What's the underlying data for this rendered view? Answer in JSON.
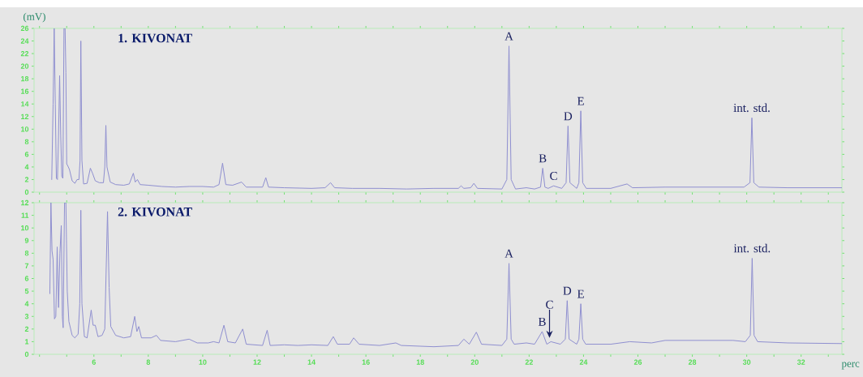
{
  "chart_data": [
    {
      "type": "line",
      "title": "1. KIVONAT",
      "ylabel": "(mV)",
      "x": [
        4.45,
        4.5,
        4.54,
        4.58,
        4.62,
        4.66,
        4.7,
        4.74,
        4.78,
        4.82,
        4.86,
        4.9,
        4.94,
        4.97,
        5.0,
        5.06,
        5.1,
        5.2,
        5.3,
        5.38,
        5.45,
        5.49,
        5.52,
        5.56,
        5.62,
        5.75,
        5.87,
        5.95,
        6.05,
        6.2,
        6.35,
        6.4,
        6.44,
        6.48,
        6.6,
        6.8,
        7.1,
        7.3,
        7.45,
        7.52,
        7.6,
        7.7,
        8.0,
        8.5,
        9.0,
        9.5,
        10.0,
        10.4,
        10.6,
        10.73,
        10.85,
        11.1,
        11.43,
        11.6,
        12.0,
        12.2,
        12.32,
        12.42,
        13.0,
        14.0,
        14.5,
        14.7,
        14.85,
        15.5,
        16.5,
        17.5,
        18.5,
        19.4,
        19.5,
        19.6,
        19.85,
        19.97,
        20.1,
        21.0,
        21.18,
        21.26,
        21.34,
        21.5,
        21.9,
        22.2,
        22.42,
        22.5,
        22.58,
        22.7,
        22.9,
        23.2,
        23.36,
        23.43,
        23.5,
        23.75,
        23.83,
        23.9,
        23.97,
        24.1,
        25.0,
        25.6,
        25.8,
        27.0,
        29.0,
        29.9,
        30.12,
        30.19,
        30.26,
        30.45,
        31.5,
        33.5
      ],
      "series": [
        {
          "color": "#8f8fd0",
          "values": [
            2.0,
            14,
            26,
            14,
            2.2,
            2.0,
            9,
            18.5,
            9,
            2.5,
            2.2,
            26,
            26,
            19,
            4.5,
            4.0,
            3.6,
            1.8,
            1.4,
            2.0,
            2.0,
            5,
            24,
            5,
            1.3,
            1.4,
            3.8,
            3.0,
            1.8,
            1.5,
            1.5,
            4,
            10.6,
            4,
            1.6,
            1.2,
            1.1,
            1.3,
            3.0,
            1.6,
            2.0,
            1.2,
            1.1,
            0.9,
            0.8,
            0.9,
            0.9,
            0.8,
            1.2,
            4.6,
            1.2,
            1.1,
            1.6,
            0.8,
            0.8,
            0.8,
            2.3,
            0.8,
            0.7,
            0.6,
            0.7,
            1.5,
            0.7,
            0.6,
            0.6,
            0.5,
            0.6,
            0.6,
            1.0,
            0.6,
            0.7,
            1.4,
            0.6,
            0.5,
            2,
            23.2,
            2,
            0.5,
            0.7,
            0.5,
            0.8,
            3.8,
            0.8,
            0.6,
            1.0,
            0.6,
            1.5,
            10.5,
            1.5,
            0.6,
            1.5,
            12.9,
            1.5,
            0.6,
            0.6,
            1.3,
            0.7,
            0.8,
            0.8,
            0.8,
            1.5,
            11.8,
            1.5,
            0.8,
            0.7,
            0.7
          ]
        }
      ],
      "xlim": [
        3.8,
        33.5
      ],
      "ylim": [
        0,
        26
      ],
      "xticks": [
        {
          "value": 4,
          "label": null
        },
        {
          "value": 5,
          "label": null
        },
        6,
        {
          "value": 7,
          "label": null
        },
        8,
        {
          "value": 9,
          "label": null
        },
        10,
        {
          "value": 11,
          "label": null
        },
        12,
        {
          "value": 13,
          "label": null
        },
        14,
        {
          "value": 15,
          "label": null
        },
        16,
        {
          "value": 17,
          "label": null
        },
        18,
        {
          "value": 19,
          "label": null
        },
        20,
        {
          "value": 21,
          "label": null
        },
        22,
        {
          "value": 23,
          "label": null
        },
        24,
        {
          "value": 25,
          "label": null
        },
        26,
        {
          "value": 27,
          "label": null
        },
        28,
        {
          "value": 29,
          "label": null
        },
        30,
        {
          "value": 31,
          "label": null
        },
        32,
        {
          "value": 33,
          "label": null
        }
      ],
      "yticks": [
        0,
        2,
        4,
        6,
        8,
        10,
        12,
        14,
        16,
        18,
        20,
        22,
        24,
        26
      ],
      "tick_labels": "y",
      "annotations": [
        {
          "text": "A",
          "x": 21.26,
          "y": 23.2
        },
        {
          "text": "B",
          "x": 22.5,
          "y": 3.8
        },
        {
          "text": "C",
          "x": 22.9,
          "y": 1.0
        },
        {
          "text": "D",
          "x": 23.43,
          "y": 10.5
        },
        {
          "text": "E",
          "x": 23.9,
          "y": 12.9
        },
        {
          "text": "int. std.",
          "x": 30.19,
          "y": 11.8
        }
      ]
    },
    {
      "type": "line",
      "title": "2. KIVONAT",
      "xlabel": "perc",
      "x": [
        4.38,
        4.42,
        4.46,
        4.5,
        4.55,
        4.6,
        4.65,
        4.7,
        4.75,
        4.8,
        4.84,
        4.87,
        4.92,
        4.97,
        5.02,
        5.08,
        5.2,
        5.3,
        5.42,
        5.48,
        5.52,
        5.56,
        5.65,
        5.75,
        5.9,
        5.97,
        6.05,
        6.15,
        6.3,
        6.4,
        6.5,
        6.56,
        6.62,
        6.8,
        7.1,
        7.35,
        7.5,
        7.58,
        7.65,
        7.75,
        8.1,
        8.3,
        8.45,
        9.0,
        9.5,
        9.8,
        10.2,
        10.4,
        10.6,
        10.78,
        10.92,
        11.2,
        11.47,
        11.6,
        12.2,
        12.37,
        12.48,
        13.0,
        13.5,
        14.0,
        14.6,
        14.8,
        14.95,
        15.4,
        15.55,
        15.75,
        16.5,
        17.1,
        17.3,
        18.5,
        19.4,
        19.6,
        19.8,
        20.06,
        20.25,
        21.0,
        21.18,
        21.26,
        21.34,
        21.45,
        21.9,
        22.2,
        22.48,
        22.65,
        22.8,
        23.15,
        23.33,
        23.4,
        23.47,
        23.75,
        23.83,
        23.9,
        23.97,
        24.08,
        25.0,
        25.7,
        26.5,
        27.0,
        29.5,
        29.95,
        30.13,
        30.2,
        30.27,
        30.4,
        31.5,
        33.5
      ],
      "series": [
        {
          "color": "#8f8fd0",
          "values": [
            4.8,
            12,
            8.2,
            7.5,
            2.8,
            3.0,
            8.5,
            3.7,
            8.0,
            10.2,
            3.0,
            2.1,
            12,
            12,
            5,
            2.6,
            1.5,
            1.3,
            1.6,
            4,
            11.4,
            4,
            1.4,
            1.3,
            3.5,
            2.3,
            2.3,
            1.4,
            1.5,
            2,
            11.3,
            5.3,
            2.2,
            1.5,
            1.3,
            1.4,
            3.0,
            1.8,
            2.2,
            1.3,
            1.3,
            1.5,
            1.1,
            1.0,
            1.2,
            0.9,
            0.9,
            1.0,
            0.9,
            2.3,
            1.0,
            0.9,
            2.0,
            0.8,
            0.7,
            1.9,
            0.7,
            0.75,
            0.7,
            0.75,
            0.7,
            1.4,
            0.8,
            0.8,
            1.3,
            0.8,
            0.7,
            0.9,
            0.7,
            0.6,
            0.7,
            1.2,
            0.8,
            1.75,
            0.8,
            0.7,
            1.2,
            7.2,
            1.2,
            0.8,
            0.9,
            0.8,
            1.8,
            0.8,
            1.0,
            0.8,
            1.2,
            4.25,
            1.2,
            0.8,
            1.2,
            4.0,
            1.2,
            0.8,
            0.8,
            1.0,
            0.9,
            1.1,
            1.1,
            1.0,
            1.5,
            7.6,
            1.5,
            1.0,
            0.9,
            0.85
          ]
        }
      ],
      "xlim": [
        3.8,
        33.5
      ],
      "ylim": [
        0,
        12
      ],
      "xticks": [
        {
          "value": 4,
          "label": null
        },
        {
          "value": 5,
          "label": null
        },
        6,
        {
          "value": 7,
          "label": null
        },
        8,
        {
          "value": 9,
          "label": null
        },
        10,
        {
          "value": 11,
          "label": null
        },
        12,
        {
          "value": 13,
          "label": null
        },
        14,
        {
          "value": 15,
          "label": null
        },
        16,
        {
          "value": 17,
          "label": null
        },
        18,
        {
          "value": 19,
          "label": null
        },
        20,
        {
          "value": 21,
          "label": null
        },
        22,
        {
          "value": 23,
          "label": null
        },
        24,
        {
          "value": 25,
          "label": null
        },
        26,
        {
          "value": 27,
          "label": null
        },
        28,
        {
          "value": 29,
          "label": null
        },
        30,
        {
          "value": 31,
          "label": null
        },
        32,
        {
          "value": 33,
          "label": null
        }
      ],
      "yticks": [
        0,
        1,
        2,
        3,
        4,
        5,
        6,
        7,
        8,
        9,
        10,
        11,
        12
      ],
      "annotations": [
        {
          "text": "A",
          "x": 21.26,
          "y": 7.2
        },
        {
          "text": "B",
          "x": 22.48,
          "y": 1.8
        },
        {
          "text": "C",
          "x": 22.75,
          "y": 1.3
        },
        {
          "text": "D",
          "x": 23.4,
          "y": 4.25
        },
        {
          "text": "E",
          "x": 23.9,
          "y": 4.0
        },
        {
          "text": "int. std.",
          "x": 30.2,
          "y": 7.6
        }
      ]
    }
  ]
}
